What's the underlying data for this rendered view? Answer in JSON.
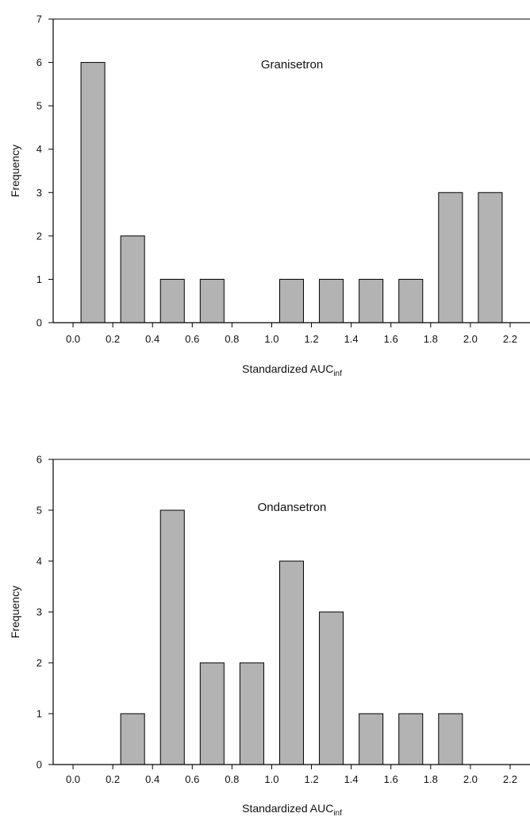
{
  "chart_data": [
    {
      "type": "bar",
      "title": "Granisetron",
      "ylabel": "Frequency",
      "xlabel_main": "Standardized AUC",
      "xlabel_sub": "inf",
      "ylim": [
        0,
        7
      ],
      "xlim": [
        -0.1,
        2.3
      ],
      "yticks": [
        0,
        1,
        2,
        3,
        4,
        5,
        6,
        7
      ],
      "xticks": [
        "0.0",
        "0.2",
        "0.4",
        "0.6",
        "0.8",
        "1.0",
        "1.2",
        "1.4",
        "1.6",
        "1.8",
        "2.0",
        "2.2"
      ],
      "bar_width": 0.12,
      "bar_color": "#b3b3b3",
      "bars": [
        {
          "x": 0.1,
          "value": 6
        },
        {
          "x": 0.3,
          "value": 2
        },
        {
          "x": 0.5,
          "value": 1
        },
        {
          "x": 0.7,
          "value": 1
        },
        {
          "x": 1.1,
          "value": 1
        },
        {
          "x": 1.3,
          "value": 1
        },
        {
          "x": 1.5,
          "value": 1
        },
        {
          "x": 1.7,
          "value": 1
        },
        {
          "x": 1.9,
          "value": 3
        },
        {
          "x": 2.1,
          "value": 3
        }
      ]
    },
    {
      "type": "bar",
      "title": "Ondansetron",
      "ylabel": "Frequency",
      "xlabel_main": "Standardized AUC",
      "xlabel_sub": "inf",
      "ylim": [
        0,
        6
      ],
      "xlim": [
        -0.1,
        2.3
      ],
      "yticks": [
        0,
        1,
        2,
        3,
        4,
        5,
        6
      ],
      "xticks": [
        "0.0",
        "0.2",
        "0.4",
        "0.6",
        "0.8",
        "1.0",
        "1.2",
        "1.4",
        "1.6",
        "1.8",
        "2.0",
        "2.2"
      ],
      "bar_width": 0.12,
      "bar_color": "#b3b3b3",
      "bars": [
        {
          "x": 0.3,
          "value": 1
        },
        {
          "x": 0.5,
          "value": 5
        },
        {
          "x": 0.7,
          "value": 2
        },
        {
          "x": 0.9,
          "value": 2
        },
        {
          "x": 1.1,
          "value": 4
        },
        {
          "x": 1.3,
          "value": 3
        },
        {
          "x": 1.5,
          "value": 1
        },
        {
          "x": 1.7,
          "value": 1
        },
        {
          "x": 1.9,
          "value": 1
        }
      ]
    }
  ]
}
